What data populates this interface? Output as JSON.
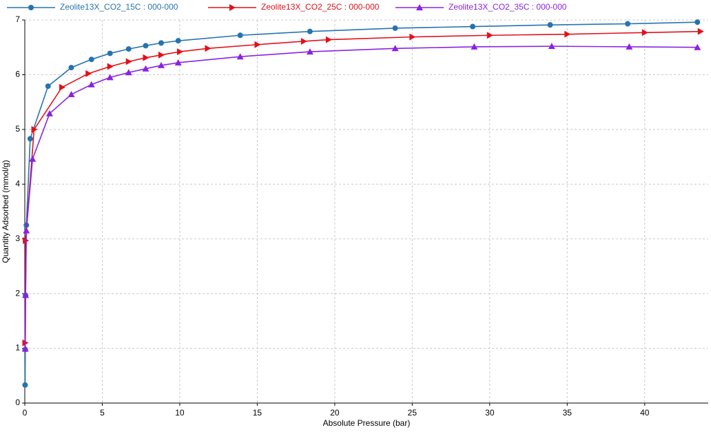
{
  "chart_data": {
    "type": "line",
    "xlabel": "Absolute Pressure (bar)",
    "ylabel": "Quantity Adsorbed (mmol/g)",
    "xlim": [
      0,
      44.1
    ],
    "ylim": [
      0,
      7
    ],
    "xticks": [
      0,
      5,
      10,
      15,
      20,
      25,
      30,
      35,
      40
    ],
    "yticks": [
      0,
      1,
      2,
      3,
      4,
      5,
      6,
      7
    ],
    "grid": true,
    "legend": "top",
    "series": [
      {
        "name": "Zeolite13X_CO2_15C : 000-000",
        "color": "#2573b0",
        "marker": "circle",
        "x": [
          0.02,
          0.03,
          0.05,
          0.1,
          0.35,
          1.5,
          3.0,
          4.3,
          5.5,
          6.7,
          7.8,
          8.8,
          9.9,
          13.9,
          18.4,
          23.9,
          28.9,
          33.9,
          38.9,
          43.4
        ],
        "values": [
          0.33,
          0.98,
          1.97,
          3.25,
          4.83,
          5.79,
          6.13,
          6.28,
          6.39,
          6.47,
          6.53,
          6.58,
          6.62,
          6.72,
          6.79,
          6.85,
          6.88,
          6.91,
          6.93,
          6.96
        ]
      },
      {
        "name": "Zeolite13X_CO2_25C : 000-000",
        "color": "#e3101a",
        "marker": "triangle-right",
        "x": [
          0.02,
          0.05,
          0.6,
          2.4,
          4.1,
          5.5,
          6.7,
          7.8,
          8.8,
          10.0,
          11.8,
          15.0,
          18.0,
          19.6,
          25.0,
          30.0,
          35.0,
          40.0,
          43.6
        ],
        "values": [
          1.1,
          2.97,
          5.0,
          5.77,
          6.02,
          6.15,
          6.24,
          6.31,
          6.36,
          6.42,
          6.48,
          6.55,
          6.61,
          6.64,
          6.69,
          6.72,
          6.74,
          6.77,
          6.79
        ]
      },
      {
        "name": "Zeolite13X_CO2_35C : 000-000",
        "color": "#8a22e0",
        "marker": "triangle-up",
        "x": [
          0.03,
          0.05,
          0.1,
          0.5,
          1.6,
          3.0,
          4.3,
          5.5,
          6.7,
          7.8,
          8.8,
          9.9,
          13.9,
          18.4,
          23.9,
          29.0,
          34.0,
          39.0,
          43.4
        ],
        "values": [
          0.99,
          1.97,
          3.15,
          4.46,
          5.29,
          5.64,
          5.82,
          5.95,
          6.04,
          6.11,
          6.17,
          6.22,
          6.33,
          6.42,
          6.48,
          6.51,
          6.52,
          6.51,
          6.5
        ]
      }
    ]
  }
}
